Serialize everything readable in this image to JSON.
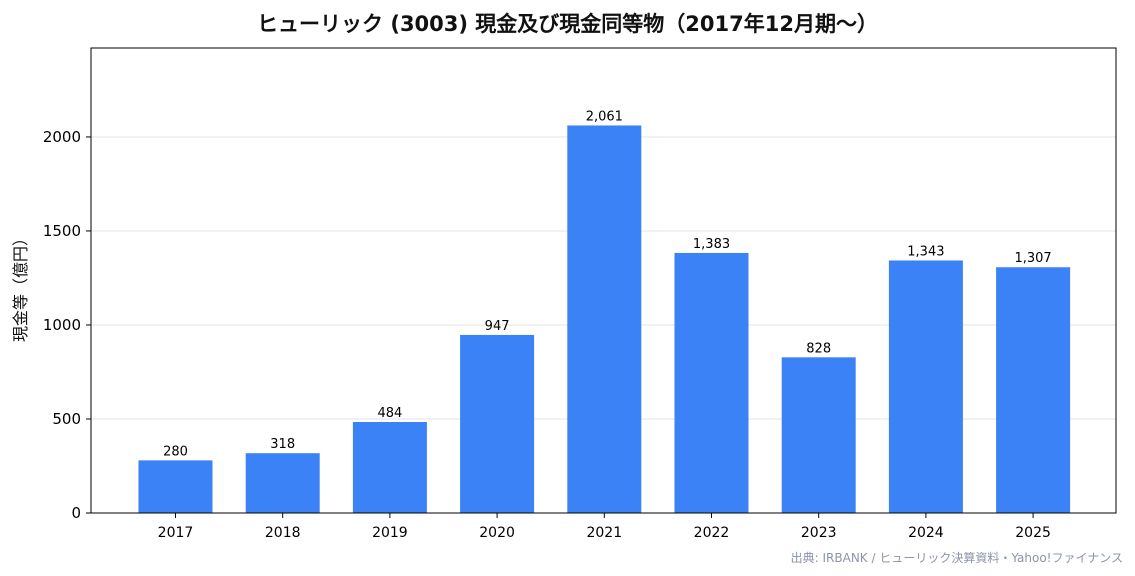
{
  "chart_data": {
    "type": "bar",
    "title": "ヒューリック (3003) 現金及び現金同等物（2017年12月期〜）",
    "ylabel": "現金等（億円）",
    "xlabel": "",
    "categories": [
      "2017",
      "2018",
      "2019",
      "2020",
      "2021",
      "2022",
      "2023",
      "2024",
      "2025"
    ],
    "values": [
      280,
      318,
      484,
      947,
      2061,
      1383,
      828,
      1343,
      1307
    ],
    "value_labels": [
      "280",
      "318",
      "484",
      "947",
      "2,061",
      "1,383",
      "828",
      "1,343",
      "1,307"
    ],
    "yticks": [
      0,
      500,
      1000,
      1500,
      2000
    ],
    "ylim": [
      0,
      2473
    ],
    "grid": "horizontal",
    "bar_color": "#3b82f6",
    "source": "出典: IRBANK / ヒューリック決算資料・Yahoo!ファイナンス"
  }
}
